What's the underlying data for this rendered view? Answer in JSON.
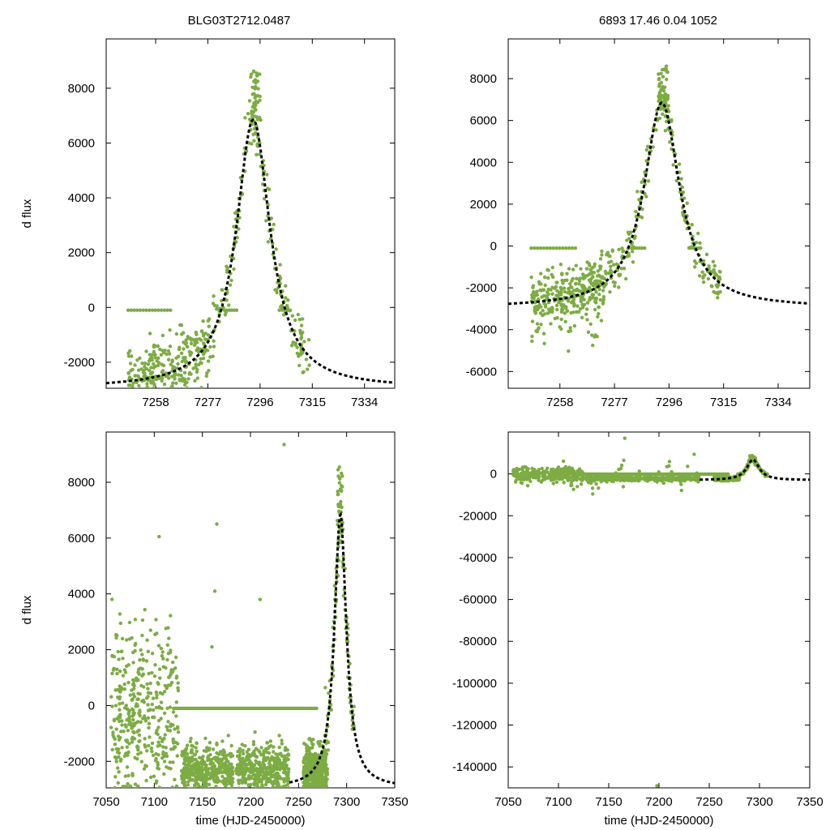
{
  "figure": {
    "title_left": "BLG03T2712.0487",
    "title_right": "6893  17.46  0.04  1052",
    "colors": {
      "data": "#7cac43",
      "model": "#000000",
      "frame": "#000000"
    }
  },
  "chart_data": [
    {
      "id": "p1",
      "type": "scatter",
      "title": "BLG03T2712.0487",
      "xlabel": "",
      "ylabel": "d flux",
      "xlim": [
        7240,
        7345
      ],
      "ylim": [
        -2950,
        9800
      ],
      "xticks": [
        7258,
        7277,
        7296,
        7315,
        7334
      ],
      "yticks": [
        -2000,
        0,
        2000,
        4000,
        6000,
        8000
      ],
      "series": [
        {
          "name": "photometry",
          "style": "points"
        },
        {
          "name": "model",
          "style": "dashed-line",
          "peak_x": 7293.5,
          "peak_y": 6850,
          "baseline": -2950,
          "fwhm": 15
        }
      ]
    },
    {
      "id": "p2",
      "type": "scatter",
      "title": "6893  17.46  0.04  1052",
      "xlabel": "",
      "ylabel": "",
      "xlim": [
        7240,
        7345
      ],
      "ylim": [
        -6800,
        9900
      ],
      "xticks": [
        7258,
        7277,
        7296,
        7315,
        7334
      ],
      "yticks": [
        -6000,
        -4000,
        -2000,
        0,
        2000,
        4000,
        6000,
        8000
      ],
      "series": [
        {
          "name": "photometry",
          "style": "points"
        },
        {
          "name": "model",
          "style": "dashed-line",
          "peak_x": 7293.5,
          "peak_y": 6850,
          "baseline": -2950,
          "fwhm": 15
        }
      ]
    },
    {
      "id": "p3",
      "type": "scatter",
      "title": "",
      "xlabel": "time (HJD-2450000)",
      "ylabel": "d flux",
      "xlim": [
        7050,
        7350
      ],
      "ylim": [
        -2950,
        9800
      ],
      "xticks": [
        7050,
        7100,
        7150,
        7200,
        7250,
        7300,
        7350
      ],
      "yticks": [
        -2000,
        0,
        2000,
        4000,
        6000,
        8000
      ],
      "series": [
        {
          "name": "photometry",
          "style": "points"
        },
        {
          "name": "model",
          "style": "dashed-line",
          "peak_x": 7293.5,
          "peak_y": 6850,
          "baseline": -2950,
          "fwhm": 15
        }
      ]
    },
    {
      "id": "p4",
      "type": "scatter",
      "title": "",
      "xlabel": "time (HJD-2450000)",
      "ylabel": "",
      "xlim": [
        7050,
        7350
      ],
      "ylim": [
        -150000,
        20000
      ],
      "xticks": [
        7050,
        7100,
        7150,
        7200,
        7250,
        7300,
        7350
      ],
      "yticks": [
        -140000,
        -120000,
        -100000,
        -80000,
        -60000,
        -40000,
        -20000,
        0
      ],
      "series": [
        {
          "name": "photometry",
          "style": "points"
        },
        {
          "name": "model",
          "style": "dashed-line",
          "peak_x": 7293.5,
          "peak_y": 6850,
          "baseline": -2950,
          "fwhm": 15
        }
      ]
    }
  ]
}
